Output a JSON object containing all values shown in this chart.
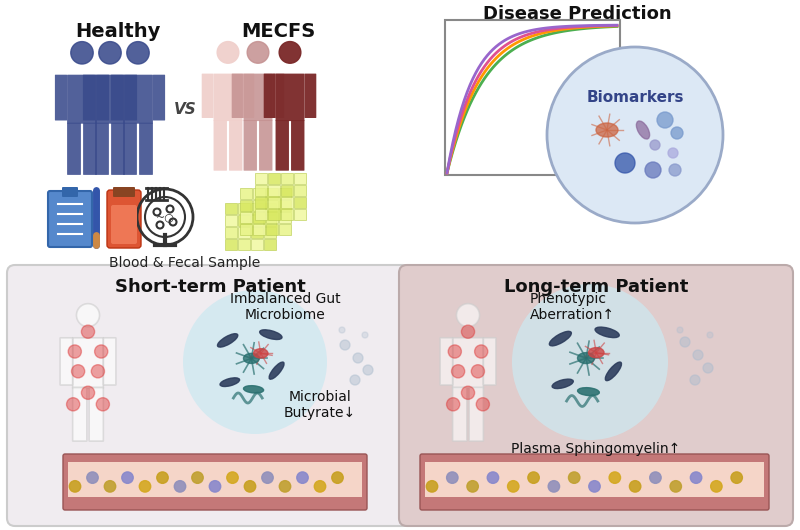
{
  "bg_color": "#ffffff",
  "top_left": {
    "healthy_label": "Healthy",
    "mecfs_label": "MECFS",
    "vs_label": "VS",
    "bottom_label": "Blood & Fecal Sample",
    "healthy_color": "#3a4b8c",
    "mecfs_light": "#f0d0cc",
    "mecfs_dark": "#7a2828"
  },
  "top_right": {
    "title": "Disease Prediction",
    "biomarkers_label": "Biomarkers",
    "box_color": "#ffffff",
    "circle_fill": "#dce8f5",
    "circle_edge": "#9aaac8",
    "curve_colors": [
      "#4CAF50",
      "#FF9800",
      "#e05090",
      "#9966cc"
    ],
    "box_edge": "#888888"
  },
  "bottom_left": {
    "title": "Short-term Patient",
    "label1": "Imbalanced Gut\nMicrobiome",
    "label2": "Microbial\nButyrate↓",
    "bg": "#f0ecf0",
    "edge": "#cccccc"
  },
  "bottom_right": {
    "title": "Long-term Patient",
    "label1": "Phenotypic\nAberration↑",
    "label2": "Plasma Sphingomyelin↑",
    "bg": "#e0cccc",
    "edge": "#bbaaaa"
  },
  "intestine_outer": "#c47878",
  "intestine_inner": "#f5d5c8",
  "dot_colors": [
    "#c8a020",
    "#9090bb",
    "#c0a030",
    "#8888cc",
    "#d4a820"
  ],
  "microbe_bg": "#cce8f0",
  "rod_colors": [
    "#2a3a5a",
    "#cc4444",
    "#2a7070",
    "#884488",
    "#336655"
  ],
  "pain_red": "#dd3333"
}
